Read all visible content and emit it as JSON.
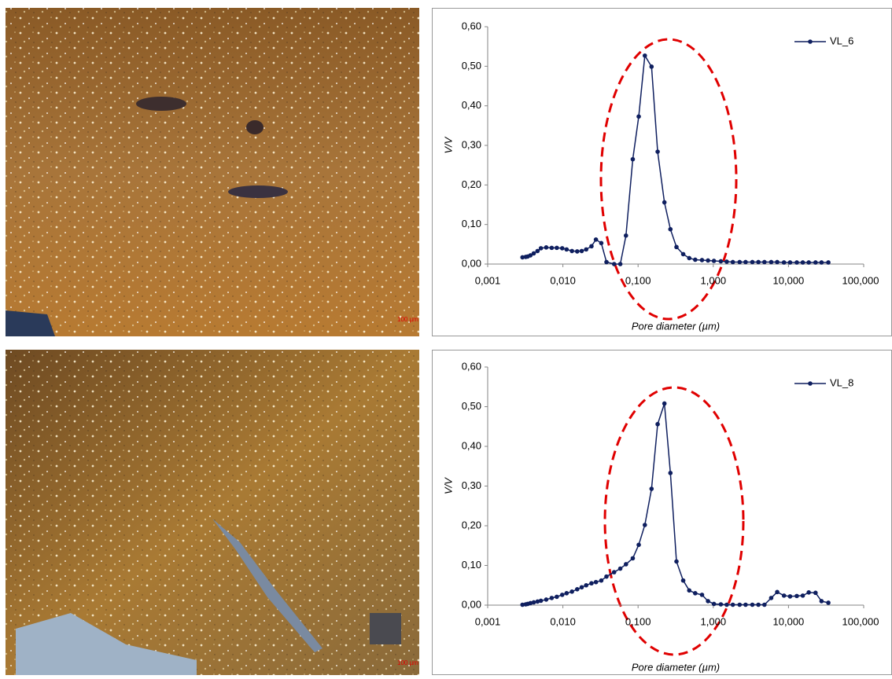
{
  "images": [
    {
      "scale_label": "100 µm"
    },
    {
      "scale_label": "100 µm"
    }
  ],
  "chart_data": [
    {
      "type": "line",
      "x_label": "Pore diameter (µm)",
      "y_label": "V/V",
      "xscale": "log",
      "legend": "top-right",
      "xlim": [
        0.001,
        100
      ],
      "xticks": [
        {
          "value": 0.001,
          "label": "0,001"
        },
        {
          "value": 0.01,
          "label": "0,010"
        },
        {
          "value": 0.1,
          "label": "0,100"
        },
        {
          "value": 1,
          "label": "1,000"
        },
        {
          "value": 10,
          "label": "10,000"
        },
        {
          "value": 100,
          "label": "100,000"
        }
      ],
      "ylim": [
        0,
        0.6
      ],
      "yticks": [
        {
          "value": 0,
          "label": "0,00"
        },
        {
          "value": 0.1,
          "label": "0,10"
        },
        {
          "value": 0.2,
          "label": "0,20"
        },
        {
          "value": 0.3,
          "label": "0,30"
        },
        {
          "value": 0.4,
          "label": "0,40"
        },
        {
          "value": 0.5,
          "label": "0,50"
        },
        {
          "value": 0.6,
          "label": "0,60"
        }
      ],
      "x": [
        0.0029,
        0.0032,
        0.0034,
        0.0037,
        0.0041,
        0.0046,
        0.0051,
        0.006,
        0.0071,
        0.0083,
        0.0098,
        0.0112,
        0.0132,
        0.0155,
        0.0178,
        0.0204,
        0.024,
        0.0275,
        0.0324,
        0.038,
        0.048,
        0.058,
        0.069,
        0.085,
        0.102,
        0.123,
        0.151,
        0.182,
        0.224,
        0.269,
        0.324,
        0.398,
        0.479,
        0.575,
        0.708,
        0.851,
        1.02,
        1.26,
        1.51,
        1.82,
        2.24,
        2.69,
        3.31,
        3.98,
        4.79,
        5.89,
        7.08,
        8.71,
        10.5,
        12.9,
        15.5,
        18.6,
        22.9,
        27.5,
        33.9
      ],
      "series": [
        {
          "name": "VL_6",
          "color": "#0f1f5f",
          "values": [
            0.017,
            0.018,
            0.019,
            0.022,
            0.027,
            0.033,
            0.04,
            0.042,
            0.041,
            0.041,
            0.04,
            0.037,
            0.033,
            0.032,
            0.033,
            0.037,
            0.045,
            0.062,
            0.053,
            0.005,
            0.0,
            0.0,
            0.072,
            0.265,
            0.373,
            0.527,
            0.499,
            0.284,
            0.156,
            0.088,
            0.043,
            0.025,
            0.015,
            0.011,
            0.01,
            0.009,
            0.008,
            0.007,
            0.006,
            0.005,
            0.005,
            0.005,
            0.005,
            0.005,
            0.005,
            0.005,
            0.005,
            0.004,
            0.004,
            0.004,
            0.004,
            0.004,
            0.004,
            0.004,
            0.004
          ]
        }
      ]
    },
    {
      "type": "line",
      "x_label": "Pore diameter (µm)",
      "y_label": "V/V",
      "xscale": "log",
      "legend": "top-right",
      "xlim": [
        0.001,
        100
      ],
      "xticks": [
        {
          "value": 0.001,
          "label": "0,001"
        },
        {
          "value": 0.01,
          "label": "0,010"
        },
        {
          "value": 0.1,
          "label": "0,100"
        },
        {
          "value": 1,
          "label": "1,000"
        },
        {
          "value": 10,
          "label": "10,000"
        },
        {
          "value": 100,
          "label": "100,000"
        }
      ],
      "ylim": [
        0,
        0.6
      ],
      "yticks": [
        {
          "value": 0,
          "label": "0,00"
        },
        {
          "value": 0.1,
          "label": "0,10"
        },
        {
          "value": 0.2,
          "label": "0,20"
        },
        {
          "value": 0.3,
          "label": "0,30"
        },
        {
          "value": 0.4,
          "label": "0,40"
        },
        {
          "value": 0.5,
          "label": "0,50"
        },
        {
          "value": 0.6,
          "label": "0,60"
        }
      ],
      "x": [
        0.0029,
        0.0032,
        0.0034,
        0.0037,
        0.0041,
        0.0046,
        0.0051,
        0.006,
        0.0071,
        0.0083,
        0.0098,
        0.0112,
        0.0132,
        0.0155,
        0.0178,
        0.0204,
        0.024,
        0.0275,
        0.0324,
        0.038,
        0.048,
        0.058,
        0.069,
        0.085,
        0.102,
        0.123,
        0.151,
        0.182,
        0.224,
        0.269,
        0.324,
        0.398,
        0.479,
        0.575,
        0.708,
        0.851,
        1.02,
        1.26,
        1.51,
        1.82,
        2.24,
        2.69,
        3.31,
        3.98,
        4.79,
        5.89,
        7.08,
        8.71,
        10.5,
        12.9,
        15.5,
        18.6,
        22.9,
        27.5,
        33.9
      ],
      "series": [
        {
          "name": "VL_8",
          "color": "#0f1f5f",
          "values": [
            0.001,
            0.002,
            0.003,
            0.005,
            0.007,
            0.009,
            0.011,
            0.014,
            0.018,
            0.021,
            0.026,
            0.03,
            0.034,
            0.04,
            0.045,
            0.05,
            0.055,
            0.058,
            0.062,
            0.072,
            0.083,
            0.092,
            0.103,
            0.118,
            0.152,
            0.202,
            0.293,
            0.456,
            0.508,
            0.333,
            0.11,
            0.062,
            0.037,
            0.03,
            0.026,
            0.01,
            0.003,
            0.002,
            0.001,
            0.001,
            0.001,
            0.001,
            0.001,
            0.001,
            0.001,
            0.018,
            0.033,
            0.024,
            0.022,
            0.023,
            0.024,
            0.032,
            0.031,
            0.01,
            0.006
          ]
        }
      ]
    }
  ]
}
